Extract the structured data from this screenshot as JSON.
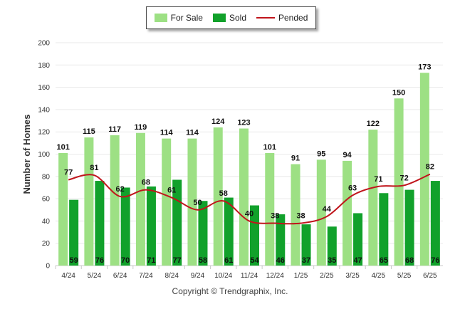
{
  "colors": {
    "for_sale": "#9de084",
    "sold": "#11a12b",
    "pended": "#c0151b",
    "grid": "#e9e9e9"
  },
  "footer": {
    "copyright": "Copyright © Trendgraphix, Inc."
  },
  "chart_data": {
    "type": "bar",
    "title": "",
    "xlabel": "",
    "ylabel": "Number of Homes",
    "ylim": [
      0,
      200
    ],
    "yticks": [
      0,
      20,
      40,
      60,
      80,
      100,
      120,
      140,
      160,
      180,
      200
    ],
    "categories": [
      "4/24",
      "5/24",
      "6/24",
      "7/24",
      "8/24",
      "9/24",
      "10/24",
      "11/24",
      "12/24",
      "1/25",
      "2/25",
      "3/25",
      "4/25",
      "5/25",
      "6/25"
    ],
    "grid": true,
    "legend_position": "top-center",
    "series": [
      {
        "name": "For Sale",
        "kind": "bar",
        "values": [
          101,
          115,
          117,
          119,
          114,
          114,
          124,
          123,
          101,
          91,
          95,
          94,
          122,
          150,
          173
        ]
      },
      {
        "name": "Sold",
        "kind": "bar",
        "values": [
          59,
          76,
          70,
          71,
          77,
          58,
          61,
          54,
          46,
          37,
          35,
          47,
          65,
          68,
          76
        ]
      },
      {
        "name": "Pended",
        "kind": "line",
        "values": [
          77,
          81,
          62,
          68,
          61,
          50,
          58,
          40,
          38,
          38,
          44,
          63,
          71,
          72,
          82
        ]
      }
    ]
  }
}
